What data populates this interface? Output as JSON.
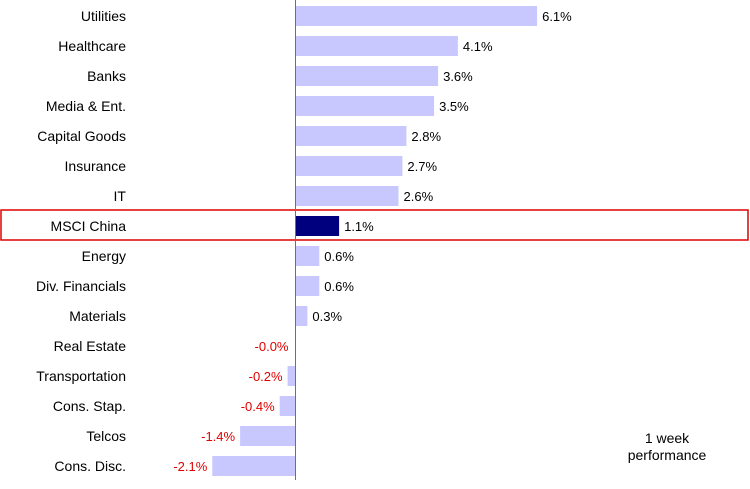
{
  "chart_data": {
    "type": "bar",
    "orientation": "horizontal",
    "categories": [
      "Utilities",
      "Healthcare",
      "Banks",
      "Media & Ent.",
      "Capital Goods",
      "Insurance",
      "IT",
      "MSCI China",
      "Energy",
      "Div. Financials",
      "Materials",
      "Real Estate",
      "Transportation",
      "Cons. Stap.",
      "Telcos",
      "Cons. Disc."
    ],
    "values": [
      6.1,
      4.1,
      3.6,
      3.5,
      2.8,
      2.7,
      2.6,
      1.1,
      0.6,
      0.6,
      0.3,
      -0.0,
      -0.2,
      -0.4,
      -1.4,
      -2.1
    ],
    "value_labels": [
      "6.1%",
      "4.1%",
      "3.6%",
      "3.5%",
      "2.8%",
      "2.7%",
      "2.6%",
      "1.1%",
      "0.6%",
      "0.6%",
      "0.3%",
      "-0.0%",
      "-0.2%",
      "-0.4%",
      "-1.4%",
      "-2.1%"
    ],
    "highlight_category": "MSCI China",
    "xlim": [
      -2.6,
      6.5
    ],
    "grid": false,
    "colors": {
      "bar": "#c8c8ff",
      "highlight_bar": "#00007f",
      "highlight_box": "#e00000",
      "positive_label": "#000000",
      "negative_label": "#e00000",
      "axis": "#707070"
    },
    "annotation": "1 week performance"
  }
}
